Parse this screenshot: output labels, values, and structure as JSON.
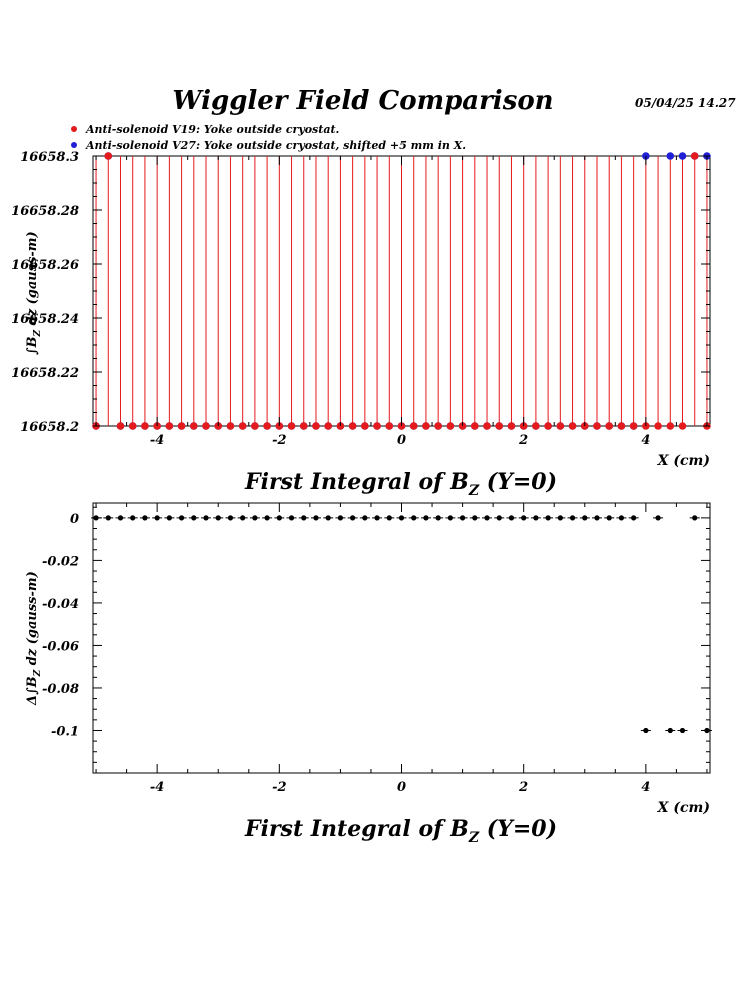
{
  "page": {
    "title": "Wiggler Field Comparison",
    "date": "05/04/25",
    "time": "14.27"
  },
  "colors": {
    "v19": "#e41a1c",
    "v27": "#1f1fd6",
    "diff": "#000000"
  },
  "chart_data": [
    {
      "type": "scatter",
      "title_main": "First Integral of B",
      "title_sub": "Z",
      "title_tail": " (Y=0)",
      "xlabel": "X (cm)",
      "ylabel": "∫B",
      "ylabel_sub": "Z",
      "ylabel_tail": " dz  (gauss-m)",
      "xlim": [
        -5.05,
        5.05
      ],
      "ylim": [
        16658.2,
        16658.3
      ],
      "xticks": [
        -4,
        -2,
        0,
        2,
        4
      ],
      "xtick_labels": [
        "-4",
        "-2",
        "0",
        "2",
        "4"
      ],
      "yticks": [
        16658.2,
        16658.22,
        16658.24,
        16658.26,
        16658.28,
        16658.3
      ],
      "ytick_labels": [
        "16658.2",
        "16658.22",
        "16658.24",
        "16658.26",
        "16658.28",
        "16658.3"
      ],
      "legend_placement": "top-left",
      "series": [
        {
          "name": "Anti-solenoid V19: Yoke outside cryostat.",
          "x": [
            -5.0,
            -4.8,
            -4.6,
            -4.4,
            -4.2,
            -4.0,
            -3.8,
            -3.6,
            -3.4,
            -3.2,
            -3.0,
            -2.8,
            -2.6,
            -2.4,
            -2.2,
            -2.0,
            -1.8,
            -1.6,
            -1.4,
            -1.2,
            -1.0,
            -0.8,
            -0.6,
            -0.4,
            -0.2,
            0.0,
            0.2,
            0.4,
            0.6,
            0.8,
            1.0,
            1.2,
            1.4,
            1.6,
            1.8,
            2.0,
            2.2,
            2.4,
            2.6,
            2.8,
            3.0,
            3.2,
            3.4,
            3.6,
            3.8,
            4.0,
            4.2,
            4.4,
            4.6,
            4.8,
            5.0
          ],
          "y": [
            16658.2,
            16658.3,
            16658.2,
            16658.2,
            16658.2,
            16658.2,
            16658.2,
            16658.2,
            16658.2,
            16658.2,
            16658.2,
            16658.2,
            16658.2,
            16658.2,
            16658.2,
            16658.2,
            16658.2,
            16658.2,
            16658.2,
            16658.2,
            16658.2,
            16658.2,
            16658.2,
            16658.2,
            16658.2,
            16658.2,
            16658.2,
            16658.2,
            16658.2,
            16658.2,
            16658.2,
            16658.2,
            16658.2,
            16658.2,
            16658.2,
            16658.2,
            16658.2,
            16658.2,
            16658.2,
            16658.2,
            16658.2,
            16658.2,
            16658.2,
            16658.2,
            16658.2,
            16658.2,
            16658.2,
            16658.2,
            16658.2,
            16658.3,
            16658.2
          ]
        },
        {
          "name": "Anti-solenoid V27: Yoke outside cryostat, shifted +5 mm in X.",
          "x": [
            -5.0,
            -4.8,
            -4.6,
            -4.4,
            -4.2,
            -4.0,
            -3.8,
            -3.6,
            -3.4,
            -3.2,
            -3.0,
            -2.8,
            -2.6,
            -2.4,
            -2.2,
            -2.0,
            -1.8,
            -1.6,
            -1.4,
            -1.2,
            -1.0,
            -0.8,
            -0.6,
            -0.4,
            -0.2,
            0.0,
            0.2,
            0.4,
            0.6,
            0.8,
            1.0,
            1.2,
            1.4,
            1.6,
            1.8,
            2.0,
            2.2,
            2.4,
            2.6,
            2.8,
            3.0,
            3.2,
            3.4,
            3.6,
            3.8,
            4.0,
            4.4,
            4.6,
            4.8,
            5.0
          ],
          "y": [
            16658.2,
            16658.3,
            16658.2,
            16658.2,
            16658.2,
            16658.2,
            16658.2,
            16658.2,
            16658.2,
            16658.2,
            16658.2,
            16658.2,
            16658.2,
            16658.2,
            16658.2,
            16658.2,
            16658.2,
            16658.2,
            16658.2,
            16658.2,
            16658.2,
            16658.2,
            16658.2,
            16658.2,
            16658.2,
            16658.2,
            16658.2,
            16658.2,
            16658.2,
            16658.2,
            16658.2,
            16658.2,
            16658.2,
            16658.2,
            16658.2,
            16658.2,
            16658.2,
            16658.2,
            16658.2,
            16658.2,
            16658.2,
            16658.2,
            16658.2,
            16658.2,
            16658.2,
            16658.3,
            16658.3,
            16658.3,
            16658.3,
            16658.3
          ]
        }
      ]
    },
    {
      "type": "scatter",
      "title_main": "First Integral of B",
      "title_sub": "Z",
      "title_tail": " (Y=0)",
      "xlabel": "X (cm)",
      "ylabel": "Δ∫B",
      "ylabel_sub": "Z",
      "ylabel_tail": " dz  (gauss-m)",
      "xlim": [
        -5.05,
        5.05
      ],
      "ylim": [
        -0.12,
        0.007
      ],
      "xticks": [
        -4,
        -2,
        0,
        2,
        4
      ],
      "xtick_labels": [
        "-4",
        "-2",
        "0",
        "2",
        "4"
      ],
      "yticks": [
        0,
        -0.02,
        -0.04,
        -0.06,
        -0.08,
        -0.1
      ],
      "ytick_labels": [
        "0",
        "-0.02",
        "-0.04",
        "-0.06",
        "-0.08",
        "-0.1"
      ],
      "series": [
        {
          "x": [
            -5.0,
            -4.8,
            -4.6,
            -4.4,
            -4.2,
            -4.0,
            -3.8,
            -3.6,
            -3.4,
            -3.2,
            -3.0,
            -2.8,
            -2.6,
            -2.4,
            -2.2,
            -2.0,
            -1.8,
            -1.6,
            -1.4,
            -1.2,
            -1.0,
            -0.8,
            -0.6,
            -0.4,
            -0.2,
            0.0,
            0.2,
            0.4,
            0.6,
            0.8,
            1.0,
            1.2,
            1.4,
            1.6,
            1.8,
            2.0,
            2.2,
            2.4,
            2.6,
            2.8,
            3.0,
            3.2,
            3.4,
            3.6,
            3.8,
            4.0,
            4.2,
            4.4,
            4.6,
            4.8,
            5.0
          ],
          "y": [
            0,
            0,
            0,
            0,
            0,
            0,
            0,
            0,
            0,
            0,
            0,
            0,
            0,
            0,
            0,
            0,
            0,
            0,
            0,
            0,
            0,
            0,
            0,
            0,
            0,
            0,
            0,
            0,
            0,
            0,
            0,
            0,
            0,
            0,
            0,
            0,
            0,
            0,
            0,
            0,
            0,
            0,
            0,
            0,
            0,
            -0.1,
            0,
            -0.1,
            -0.1,
            0,
            -0.1
          ]
        }
      ]
    }
  ]
}
